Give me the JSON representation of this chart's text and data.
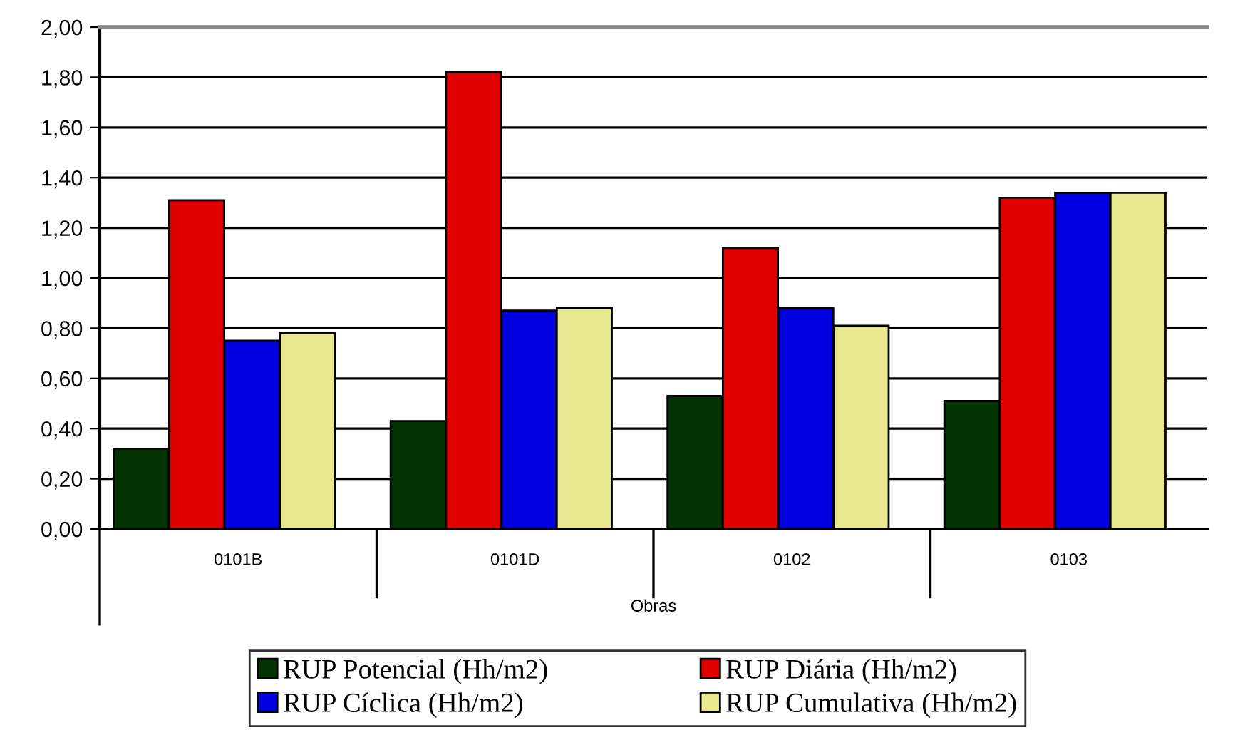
{
  "chart_data": {
    "type": "bar",
    "xlabel": "Obras",
    "categories": [
      "0101B",
      "0101D",
      "0102",
      "0103"
    ],
    "series": [
      {
        "name": "RUP Potencial (Hh/m2)",
        "color": "#003300",
        "values": [
          0.32,
          0.43,
          0.53,
          0.51
        ]
      },
      {
        "name": "RUP Diária (Hh/m2)",
        "color": "#e00000",
        "values": [
          1.31,
          1.82,
          1.12,
          1.32
        ]
      },
      {
        "name": "RUP Cíclica (Hh/m2)",
        "color": "#0000e0",
        "values": [
          0.75,
          0.87,
          0.88,
          1.34
        ]
      },
      {
        "name": "RUP Cumulativa (Hh/m2)",
        "color": "#e8e890",
        "values": [
          0.78,
          0.88,
          0.81,
          1.34
        ]
      }
    ],
    "ylim": [
      0,
      2
    ],
    "yticks": [
      {
        "value": 0,
        "label": "0,00"
      },
      {
        "value": 0.2,
        "label": "0,20"
      },
      {
        "value": 0.4,
        "label": "0,40"
      },
      {
        "value": 0.6,
        "label": "0,60"
      },
      {
        "value": 0.8,
        "label": "0,80"
      },
      {
        "value": 1.0,
        "label": "1,00"
      },
      {
        "value": 1.2,
        "label": "1,20"
      },
      {
        "value": 1.4,
        "label": "1,40"
      },
      {
        "value": 1.6,
        "label": "1,60"
      },
      {
        "value": 1.8,
        "label": "1,80"
      },
      {
        "value": 2.0,
        "label": "2,00"
      }
    ],
    "grid": "y",
    "legend": "bottom"
  }
}
